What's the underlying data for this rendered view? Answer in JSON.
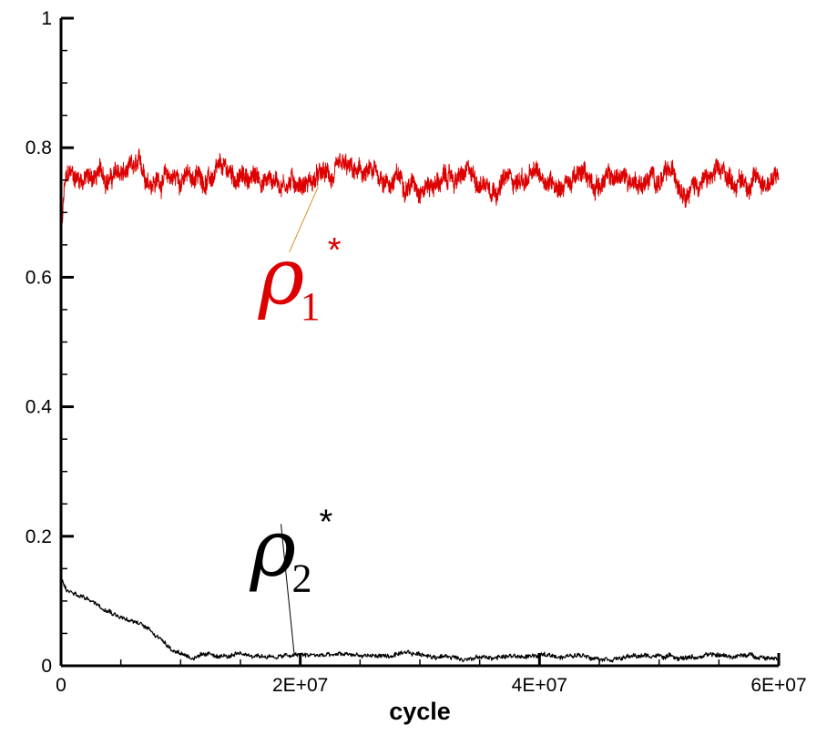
{
  "chart_data": {
    "type": "line",
    "title": "",
    "xlabel": "cycle",
    "ylabel": "",
    "xlim": [
      0,
      60000000
    ],
    "ylim": [
      0,
      1
    ],
    "x_ticks": [
      {
        "value": 0,
        "label": "0"
      },
      {
        "value": 20000000,
        "label": "2E+07"
      },
      {
        "value": 40000000,
        "label": "4E+07"
      },
      {
        "value": 60000000,
        "label": "6E+07"
      }
    ],
    "y_ticks": [
      {
        "value": 0,
        "label": "0"
      },
      {
        "value": 0.2,
        "label": "0.2"
      },
      {
        "value": 0.4,
        "label": "0.4"
      },
      {
        "value": 0.6,
        "label": "0.6"
      },
      {
        "value": 0.8,
        "label": "0.8"
      },
      {
        "value": 1,
        "label": "1"
      }
    ],
    "grid": false,
    "series": [
      {
        "name": "ρ1*",
        "color": "#dd0000",
        "noise": 0.025,
        "points": [
          [
            0,
            0.65
          ],
          [
            300000,
            0.74
          ],
          [
            800000,
            0.755
          ],
          [
            5000000,
            0.757
          ],
          [
            10000000,
            0.754
          ],
          [
            20000000,
            0.752
          ],
          [
            30000000,
            0.751
          ],
          [
            40000000,
            0.752
          ],
          [
            50000000,
            0.751
          ],
          [
            60000000,
            0.752
          ]
        ]
      },
      {
        "name": "ρ2*",
        "color": "#000000",
        "noise": 0.006,
        "points": [
          [
            0,
            0.135
          ],
          [
            500000,
            0.115
          ],
          [
            2000000,
            0.105
          ],
          [
            4000000,
            0.09
          ],
          [
            6000000,
            0.07
          ],
          [
            7500000,
            0.055
          ],
          [
            8500000,
            0.04
          ],
          [
            9500000,
            0.025
          ],
          [
            11000000,
            0.015
          ],
          [
            15000000,
            0.014
          ],
          [
            20000000,
            0.015
          ],
          [
            25000000,
            0.016
          ],
          [
            30000000,
            0.015
          ],
          [
            35000000,
            0.014
          ],
          [
            40000000,
            0.015
          ],
          [
            45000000,
            0.016
          ],
          [
            50000000,
            0.015
          ],
          [
            55000000,
            0.015
          ],
          [
            60000000,
            0.015
          ]
        ]
      }
    ],
    "annotations": [
      {
        "series": "ρ1*",
        "symbol": "ρ",
        "subscript": "1",
        "superscript": "*",
        "color": "#dd0000",
        "label_x": 16500000,
        "label_y": 0.56,
        "pointer_to_x": 21500000,
        "pointer_to_y": 0.74
      },
      {
        "series": "ρ2*",
        "symbol": "ρ",
        "subscript": "2",
        "superscript": "*",
        "color": "#000000",
        "label_x": 15800000,
        "label_y": 0.14,
        "pointer_to_x": 19500000,
        "pointer_to_y": 0.017
      }
    ]
  }
}
